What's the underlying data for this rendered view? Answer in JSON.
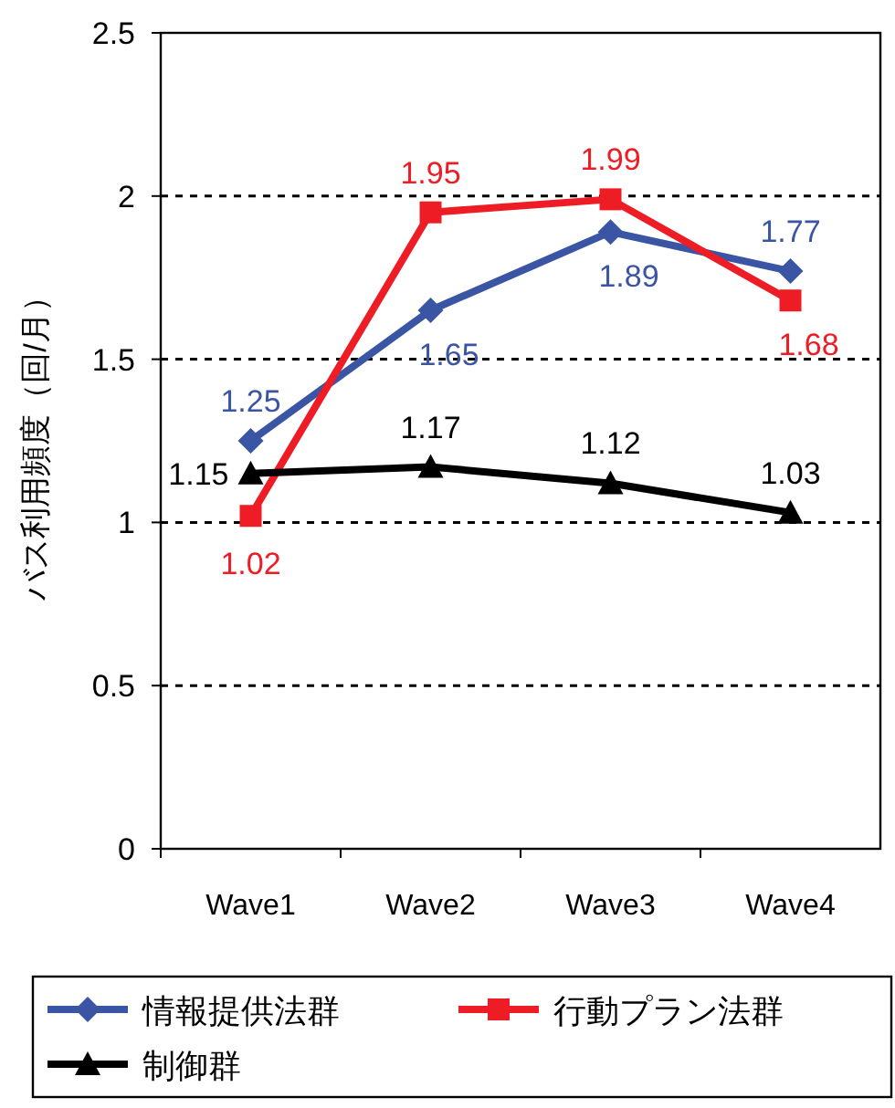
{
  "chart_data": {
    "type": "line",
    "ylabel": "バス利用頻度（回/月）",
    "categories": [
      "Wave1",
      "Wave2",
      "Wave3",
      "Wave4"
    ],
    "series": [
      {
        "name": "情報提供法群",
        "color": "#3955a3",
        "marker": "diamond",
        "values": [
          1.25,
          1.65,
          1.89,
          1.77
        ]
      },
      {
        "name": "行動プラン法群",
        "color": "#ee1c25",
        "marker": "square",
        "values": [
          1.02,
          1.95,
          1.99,
          1.68
        ]
      },
      {
        "name": "制御群",
        "color": "#000000",
        "marker": "triangle",
        "values": [
          1.15,
          1.17,
          1.12,
          1.03
        ]
      }
    ],
    "ylim": [
      0,
      2.5
    ],
    "yticks": [
      0,
      0.5,
      1,
      1.5,
      2,
      2.5
    ],
    "grid": "y",
    "legend": "bottom",
    "data_labels": true
  }
}
